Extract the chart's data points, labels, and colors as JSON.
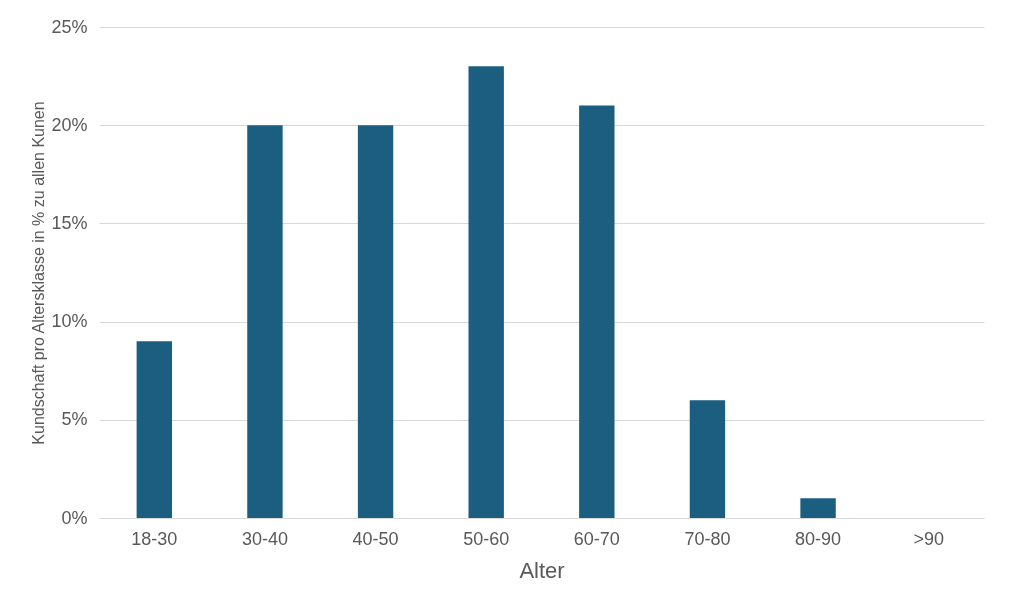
{
  "chart_data": {
    "type": "bar",
    "xlabel": "Alter",
    "ylabel": "Kundschaft pro Altersklasse in % zu allen Kunen",
    "categories": [
      "18-30",
      "30-40",
      "40-50",
      "50-60",
      "60-70",
      "70-80",
      "80-90",
      ">90"
    ],
    "values": [
      9,
      20,
      20,
      23,
      21,
      6,
      1,
      0
    ],
    "color": "#1b5e80",
    "ylim": [
      0,
      25
    ],
    "yticks": [
      {
        "value": 0,
        "label": "0%"
      },
      {
        "value": 5,
        "label": "5%"
      },
      {
        "value": 10,
        "label": "10%"
      },
      {
        "value": 15,
        "label": "15%"
      },
      {
        "value": 20,
        "label": "20%"
      },
      {
        "value": 25,
        "label": "25%"
      }
    ],
    "grid": "y"
  }
}
